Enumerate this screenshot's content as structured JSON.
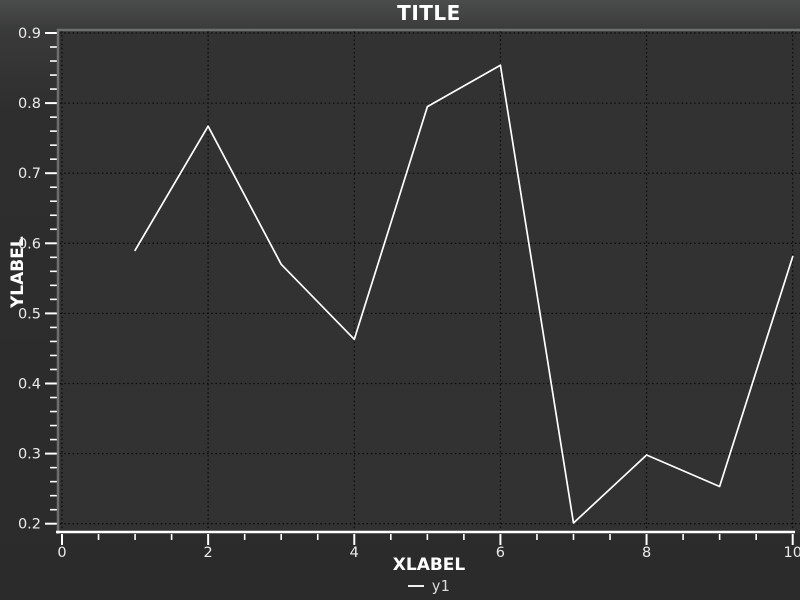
{
  "chart_data": {
    "type": "line",
    "title": "TITLE",
    "xlabel": "XLABEL",
    "ylabel": "YLABEL",
    "x": [
      1,
      2,
      3,
      4,
      5,
      6,
      7,
      8,
      9,
      10
    ],
    "series": [
      {
        "name": "y1",
        "values": [
          0.59,
          0.767,
          0.57,
          0.463,
          0.795,
          0.854,
          0.201,
          0.298,
          0.253,
          0.581
        ]
      }
    ],
    "xlim": [
      0,
      10
    ],
    "ylim": [
      0.2,
      0.9
    ],
    "xticks": {
      "values": [
        0,
        2,
        4,
        6,
        8,
        10
      ],
      "labels": [
        "0",
        "2",
        "4",
        "6",
        "8",
        "10"
      ],
      "minor_step": 0.5
    },
    "yticks": {
      "values": [
        0.2,
        0.3,
        0.4,
        0.5,
        0.6,
        0.7,
        0.8,
        0.9
      ],
      "labels": [
        "0.2",
        "0.3",
        "0.4",
        "0.5",
        "0.6",
        "0.7",
        "0.8",
        "0.9"
      ],
      "minor_step": 0.02
    },
    "grid": true,
    "legend": {
      "position": "bottom-center",
      "entries": [
        {
          "label": "y1",
          "swatch": "line"
        }
      ]
    },
    "colors": {
      "background_top": "#4b4d4d",
      "background": "#2b2b2b",
      "plot_background": "#323232",
      "grid": "#0d0d0d",
      "border": "#6e6e6e",
      "axis": "#ffffff",
      "line": "#ffffff",
      "title_text": "#ffffff",
      "tick_text": "#eaeaea",
      "legend_text": "#d9d9d9"
    }
  }
}
